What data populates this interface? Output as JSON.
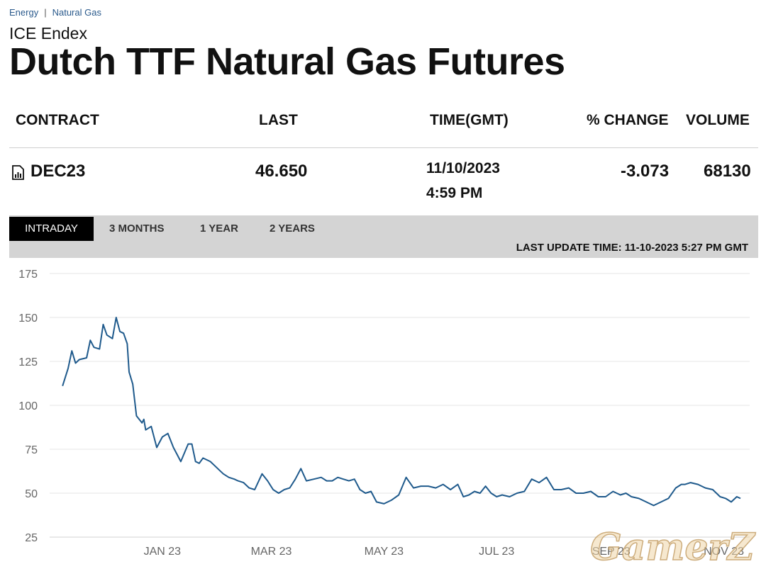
{
  "breadcrumb": {
    "items": [
      "Energy",
      "Natural Gas"
    ],
    "separator": "|"
  },
  "header": {
    "subtitle": "ICE Endex",
    "title": "Dutch TTF Natural Gas Futures"
  },
  "table": {
    "columns": [
      "CONTRACT",
      "LAST",
      "TIME(GMT)",
      "% CHANGE",
      "VOLUME"
    ],
    "row": {
      "contract": "DEC23",
      "last": "46.650",
      "date": "11/10/2023",
      "time": "4:59 PM",
      "change": "-3.073",
      "volume": "68130"
    }
  },
  "tabs": [
    "INTRADAY",
    "3 MONTHS",
    "1 YEAR",
    "2 YEARS"
  ],
  "active_tab": "INTRADAY",
  "last_update": "LAST UPDATE TIME: 11-10-2023 5:27 PM GMT",
  "watermark": {
    "text": "GamerZ"
  },
  "colors": {
    "line": "#1f5a8c",
    "grid": "#e6e6e6",
    "tab_active_bg": "#000000",
    "tabbar_bg": "#d4d4d4"
  },
  "chart_data": {
    "type": "line",
    "x_tick_labels": [
      "JAN 23",
      "MAR 23",
      "MAY 23",
      "JUL 23",
      "SEP 23",
      "NOV 23"
    ],
    "ylim": [
      25,
      175
    ],
    "y_ticks": [
      25,
      50,
      75,
      100,
      125,
      150,
      175
    ],
    "grid": true,
    "series": [
      {
        "x": [
          "2022-11-08",
          "2022-11-11",
          "2022-11-13",
          "2022-11-15",
          "2022-11-17",
          "2022-11-21",
          "2022-11-23",
          "2022-11-25",
          "2022-11-28",
          "2022-11-30",
          "2022-12-02",
          "2022-12-05",
          "2022-12-07",
          "2022-12-09",
          "2022-12-11",
          "2022-12-13",
          "2022-12-14",
          "2022-12-16",
          "2022-12-18",
          "2022-12-21",
          "2022-12-22",
          "2022-12-23",
          "2022-12-26",
          "2022-12-29",
          "2023-01-01",
          "2023-01-04",
          "2023-01-07",
          "2023-01-09",
          "2023-01-11",
          "2023-01-13",
          "2023-01-15",
          "2023-01-17",
          "2023-01-19",
          "2023-01-21",
          "2023-01-23",
          "2023-01-25",
          "2023-01-27",
          "2023-01-30",
          "2023-02-01",
          "2023-02-03",
          "2023-02-06",
          "2023-02-09",
          "2023-02-11",
          "2023-02-14",
          "2023-02-17",
          "2023-02-20",
          "2023-02-24",
          "2023-02-27",
          "2023-03-02",
          "2023-03-05",
          "2023-03-08",
          "2023-03-11",
          "2023-03-14",
          "2023-03-17",
          "2023-03-20",
          "2023-03-24",
          "2023-03-28",
          "2023-03-31",
          "2023-04-03",
          "2023-04-06",
          "2023-04-09",
          "2023-04-12",
          "2023-04-15",
          "2023-04-18",
          "2023-04-21",
          "2023-04-24",
          "2023-04-27",
          "2023-05-01",
          "2023-05-05",
          "2023-05-09",
          "2023-05-13",
          "2023-05-17",
          "2023-05-21",
          "2023-05-25",
          "2023-05-29",
          "2023-06-02",
          "2023-06-06",
          "2023-06-10",
          "2023-06-13",
          "2023-06-16",
          "2023-06-19",
          "2023-06-22",
          "2023-06-25",
          "2023-06-28",
          "2023-07-01",
          "2023-07-04",
          "2023-07-08",
          "2023-07-12",
          "2023-07-16",
          "2023-07-20",
          "2023-07-24",
          "2023-07-28",
          "2023-08-01",
          "2023-08-05",
          "2023-08-09",
          "2023-08-13",
          "2023-08-17",
          "2023-08-21",
          "2023-08-25",
          "2023-08-29",
          "2023-09-02",
          "2023-09-06",
          "2023-09-09",
          "2023-09-12",
          "2023-09-16",
          "2023-09-20",
          "2023-09-24",
          "2023-09-28",
          "2023-10-02",
          "2023-10-06",
          "2023-10-09",
          "2023-10-11",
          "2023-10-14",
          "2023-10-18",
          "2023-10-22",
          "2023-10-26",
          "2023-10-30",
          "2023-11-02",
          "2023-11-05",
          "2023-11-08",
          "2023-11-10"
        ],
        "y": [
          111,
          121,
          131,
          124,
          126,
          127,
          137,
          133,
          132,
          146,
          140,
          138,
          150,
          142,
          141,
          135,
          119,
          112,
          94,
          90,
          92,
          86,
          88,
          76,
          82,
          84,
          76,
          72,
          68,
          73,
          78,
          78,
          68,
          67,
          70,
          69,
          68,
          65,
          63,
          61,
          59,
          58,
          57,
          56,
          53,
          52,
          61,
          57,
          52,
          50,
          52,
          53,
          58,
          64,
          57,
          58,
          59,
          57,
          57,
          59,
          58,
          57,
          58,
          52,
          50,
          51,
          45,
          44,
          46,
          49,
          59,
          53,
          54,
          54,
          53,
          55,
          52,
          55,
          48,
          49,
          51,
          50,
          54,
          50,
          48,
          49,
          48,
          50,
          51,
          58,
          56,
          59,
          52,
          52,
          53,
          50,
          50,
          51,
          48,
          48,
          51,
          49,
          50,
          48,
          47,
          45,
          43,
          45,
          47,
          53,
          55,
          55,
          56,
          55,
          53,
          52,
          48,
          47,
          45,
          48,
          47
        ]
      }
    ]
  }
}
